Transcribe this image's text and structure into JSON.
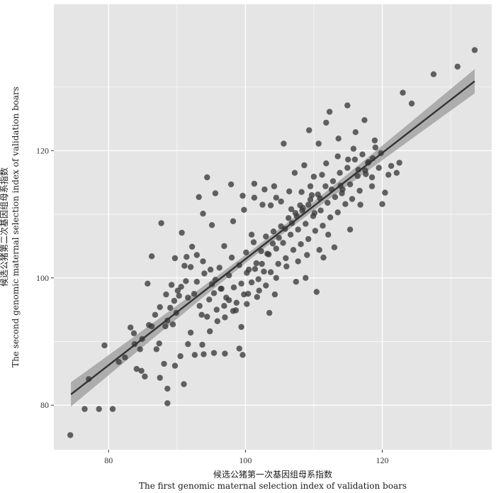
{
  "chart_data": {
    "type": "scatter",
    "title": "",
    "xlabel_lines": [
      "候选公猪第一次基因组母系指数",
      "The first genomic maternal selection index of validation boars"
    ],
    "ylabel_lines": [
      "候选公猪第二次基因组母系指数",
      "The second genomic maternal selection index of validation boars"
    ],
    "xlim": [
      72,
      136
    ],
    "ylim": [
      73,
      143
    ],
    "x_ticks": [
      80,
      100,
      120
    ],
    "y_ticks": [
      80,
      100,
      120
    ],
    "x_tick_labels": [
      "80",
      "100",
      "120"
    ],
    "y_tick_labels": [
      "80",
      "100",
      "120"
    ],
    "grid": true,
    "legend": "none",
    "colors": {
      "panel": "#e5e5e5",
      "grid": "#ffffff",
      "point": "#3a3a3a",
      "line": "#333333",
      "ribbon": "#9a9a9a"
    },
    "regression": {
      "x": [
        74.5,
        133.5
      ],
      "y": [
        81.7,
        130.9
      ],
      "ci_halfwidth_ends": 1.9,
      "ci_halfwidth_center": 0.6
    },
    "points": [
      [
        74.4,
        75.3
      ],
      [
        76.5,
        79.4
      ],
      [
        78.6,
        79.4
      ],
      [
        77.1,
        84.1
      ],
      [
        79.4,
        89.4
      ],
      [
        81.5,
        86.8
      ],
      [
        82.4,
        87.5
      ],
      [
        83.2,
        92.2
      ],
      [
        83.7,
        91.3
      ],
      [
        84.6,
        88.8
      ],
      [
        84.1,
        85.7
      ],
      [
        84.8,
        85.4
      ],
      [
        85.7,
        99.1
      ],
      [
        86.3,
        92.4
      ],
      [
        86.3,
        103.4
      ],
      [
        87.0,
        88.8
      ],
      [
        87.4,
        89.7
      ],
      [
        87.7,
        108.6
      ],
      [
        88.1,
        86.5
      ],
      [
        88.6,
        80.3
      ],
      [
        88.6,
        82.6
      ],
      [
        88.3,
        92.4
      ],
      [
        88.6,
        93.3
      ],
      [
        89.0,
        95.3
      ],
      [
        89.4,
        92.7
      ],
      [
        89.6,
        96.4
      ],
      [
        89.9,
        94.5
      ],
      [
        90.3,
        97.2
      ],
      [
        90.6,
        98.6
      ],
      [
        91.1,
        101.9
      ],
      [
        91.4,
        103.3
      ],
      [
        91.6,
        96.9
      ],
      [
        92.0,
        91.4
      ],
      [
        92.5,
        97.5
      ],
      [
        92.9,
        99.4
      ],
      [
        93.3,
        95.6
      ],
      [
        93.6,
        94.2
      ],
      [
        94.0,
        100.7
      ],
      [
        94.4,
        93.9
      ],
      [
        94.7,
        96.6
      ],
      [
        95.1,
        99.0
      ],
      [
        95.4,
        97.6
      ],
      [
        95.8,
        95.0
      ],
      [
        96.2,
        101.6
      ],
      [
        96.5,
        98.3
      ],
      [
        96.9,
        95.6
      ],
      [
        97.2,
        96.9
      ],
      [
        97.6,
        100.4
      ],
      [
        98.0,
        103.2
      ],
      [
        98.3,
        98.5
      ],
      [
        98.7,
        96.1
      ],
      [
        99.1,
        102.0
      ],
      [
        99.4,
        99.1
      ],
      [
        99.8,
        97.4
      ],
      [
        100.1,
        104.0
      ],
      [
        100.5,
        101.3
      ],
      [
        100.9,
        99.3
      ],
      [
        101.2,
        105.6
      ],
      [
        101.6,
        102.3
      ],
      [
        101.9,
        99.8
      ],
      [
        102.3,
        104.2
      ],
      [
        102.7,
        101.0
      ],
      [
        103.0,
        106.5
      ],
      [
        103.4,
        103.7
      ],
      [
        103.7,
        100.9
      ],
      [
        104.1,
        107.3
      ],
      [
        104.5,
        104.6
      ],
      [
        104.8,
        102.2
      ],
      [
        105.2,
        108.1
      ],
      [
        105.5,
        105.5
      ],
      [
        105.9,
        103.1
      ],
      [
        106.3,
        109.4
      ],
      [
        106.6,
        106.8
      ],
      [
        107.0,
        104.4
      ],
      [
        107.3,
        110.2
      ],
      [
        107.7,
        107.6
      ],
      [
        108.1,
        105.3
      ],
      [
        108.4,
        111.0
      ],
      [
        108.8,
        108.5
      ],
      [
        109.2,
        106.1
      ],
      [
        109.5,
        112.3
      ],
      [
        109.9,
        109.7
      ],
      [
        110.2,
        107.4
      ],
      [
        110.6,
        113.1
      ],
      [
        111.0,
        110.6
      ],
      [
        111.3,
        108.2
      ],
      [
        111.7,
        114.4
      ],
      [
        112.0,
        111.8
      ],
      [
        112.4,
        109.5
      ],
      [
        112.8,
        115.2
      ],
      [
        113.1,
        112.7
      ],
      [
        113.5,
        110.3
      ],
      [
        113.8,
        116.5
      ],
      [
        114.2,
        113.9
      ],
      [
        114.6,
        111.6
      ],
      [
        114.9,
        117.3
      ],
      [
        115.3,
        114.7
      ],
      [
        115.6,
        112.4
      ],
      [
        116.0,
        118.6
      ],
      [
        116.4,
        116.0
      ],
      [
        116.7,
        113.7
      ],
      [
        117.1,
        119.4
      ],
      [
        117.5,
        116.9
      ],
      [
        118.0,
        118.2
      ],
      [
        118.5,
        115.8
      ],
      [
        119.0,
        120.5
      ],
      [
        119.5,
        117.3
      ],
      [
        120.0,
        111.6
      ],
      [
        120.4,
        113.4
      ],
      [
        120.9,
        116.2
      ],
      [
        121.3,
        117.6
      ],
      [
        122.1,
        116.5
      ],
      [
        122.5,
        118.1
      ],
      [
        123.0,
        129.1
      ],
      [
        124.3,
        127.4
      ],
      [
        127.5,
        132.0
      ],
      [
        131.0,
        133.2
      ],
      [
        133.5,
        135.8
      ],
      [
        118.9,
        121.6
      ],
      [
        117.9,
        118.1
      ],
      [
        119.8,
        119.6
      ],
      [
        114.9,
        127.1
      ],
      [
        116.1,
        122.9
      ],
      [
        112.3,
        126.1
      ],
      [
        110.7,
        121.1
      ],
      [
        109.3,
        123.2
      ],
      [
        111.8,
        124.4
      ],
      [
        105.6,
        121.1
      ],
      [
        107.2,
        116.5
      ],
      [
        109.5,
        114.4
      ],
      [
        111.2,
        116.2
      ],
      [
        113.6,
        121.9
      ],
      [
        115.8,
        120.3
      ],
      [
        117.4,
        124.8
      ],
      [
        113.9,
        114.5
      ],
      [
        108.6,
        117.7
      ],
      [
        104.2,
        114.4
      ],
      [
        102.5,
        111.5
      ],
      [
        101.3,
        114.8
      ],
      [
        99.8,
        110.7
      ],
      [
        98.2,
        108.9
      ],
      [
        96.9,
        105.0
      ],
      [
        95.1,
        108.3
      ],
      [
        93.8,
        110.1
      ],
      [
        93.2,
        112.7
      ],
      [
        95.6,
        113.3
      ],
      [
        94.4,
        115.8
      ],
      [
        92.2,
        104.9
      ],
      [
        90.7,
        107.1
      ],
      [
        89.7,
        103.1
      ],
      [
        97.9,
        114.7
      ],
      [
        99.6,
        112.9
      ],
      [
        100.9,
        106.8
      ],
      [
        103.7,
        111.4
      ],
      [
        105.2,
        112.0
      ],
      [
        106.7,
        110.8
      ],
      [
        108.0,
        111.4
      ],
      [
        109.7,
        113.0
      ],
      [
        110.9,
        112.5
      ],
      [
        112.6,
        113.9
      ],
      [
        114.1,
        113.3
      ],
      [
        115.3,
        107.6
      ],
      [
        116.8,
        111.5
      ],
      [
        118.5,
        114.4
      ],
      [
        107.4,
        99.4
      ],
      [
        108.8,
        100.0
      ],
      [
        110.4,
        97.8
      ],
      [
        106.0,
        101.8
      ],
      [
        104.3,
        97.4
      ],
      [
        103.5,
        94.5
      ],
      [
        102.0,
        98.0
      ],
      [
        100.4,
        97.5
      ],
      [
        99.4,
        92.3
      ],
      [
        98.2,
        94.8
      ],
      [
        97.0,
        93.8
      ],
      [
        95.9,
        93.2
      ],
      [
        94.8,
        91.6
      ],
      [
        93.7,
        89.5
      ],
      [
        92.6,
        87.9
      ],
      [
        91.6,
        89.6
      ],
      [
        90.5,
        87.7
      ],
      [
        89.7,
        86.2
      ],
      [
        99.1,
        88.9
      ],
      [
        99.6,
        87.9
      ],
      [
        97.0,
        88.1
      ],
      [
        95.4,
        88.2
      ],
      [
        93.9,
        88.0
      ],
      [
        91.0,
        83.3
      ],
      [
        87.5,
        84.3
      ],
      [
        85.3,
        84.5
      ],
      [
        80.6,
        79.4
      ],
      [
        100.2,
        100.8
      ],
      [
        101.4,
        101.4
      ],
      [
        102.4,
        102.2
      ],
      [
        103.2,
        103.8
      ],
      [
        104.0,
        105.4
      ],
      [
        104.9,
        106.3
      ],
      [
        105.8,
        107.7
      ],
      [
        106.8,
        108.6
      ],
      [
        107.5,
        109.7
      ],
      [
        108.3,
        110.6
      ],
      [
        109.2,
        111.5
      ],
      [
        110.1,
        110.2
      ],
      [
        110.8,
        104.4
      ],
      [
        112.1,
        106.8
      ],
      [
        113.0,
        104.8
      ],
      [
        111.4,
        103.2
      ],
      [
        109.0,
        103.6
      ],
      [
        107.7,
        102.6
      ],
      [
        104.5,
        100.0
      ],
      [
        103.0,
        98.8
      ],
      [
        101.7,
        97.0
      ],
      [
        100.2,
        95.9
      ],
      [
        98.6,
        94.9
      ],
      [
        97.6,
        96.5
      ],
      [
        96.4,
        98.3
      ],
      [
        95.6,
        99.7
      ],
      [
        94.9,
        101.3
      ],
      [
        93.8,
        102.6
      ],
      [
        92.9,
        103.6
      ],
      [
        92.0,
        101.7
      ],
      [
        91.3,
        99.5
      ],
      [
        90.1,
        98.0
      ],
      [
        89.2,
        98.9
      ],
      [
        88.4,
        97.4
      ],
      [
        87.5,
        95.4
      ],
      [
        86.8,
        94.2
      ],
      [
        85.9,
        92.6
      ],
      [
        84.9,
        90.4
      ],
      [
        83.8,
        89.6
      ],
      [
        101.3,
        112.6
      ],
      [
        102.8,
        113.9
      ],
      [
        104.5,
        112.6
      ],
      [
        106.4,
        113.6
      ],
      [
        108.2,
        113.5
      ],
      [
        110.0,
        115.9
      ],
      [
        111.8,
        118.0
      ],
      [
        113.5,
        119.1
      ],
      [
        115.0,
        118.6
      ],
      [
        116.5,
        117.0
      ],
      [
        117.6,
        116.3
      ],
      [
        118.6,
        118.8
      ]
    ]
  }
}
